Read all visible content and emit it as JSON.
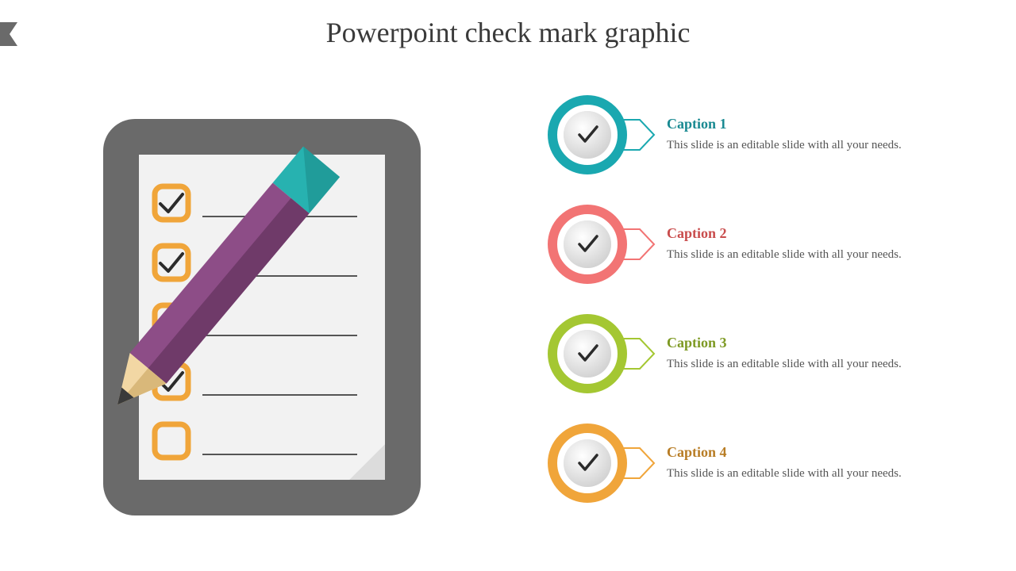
{
  "title": "Powerpoint check mark graphic",
  "title_color": "#3a3a3a",
  "background_color": "#ffffff",
  "arrow_tab_color": "#6a6a6a",
  "clipboard": {
    "body_color": "#6a6a6a",
    "paper_color": "#f2f2f2",
    "checkbox_border_color": "#f0a53a",
    "checkbox_fill_color": "#f7b74f",
    "checkmark_color": "#2b2b2b",
    "line_color": "#555555",
    "pencil_body_color": "#8d4d87",
    "pencil_body_shade": "#6f3a69",
    "pencil_eraser_color": "#27b2b0",
    "pencil_eraser_shade": "#1a8583",
    "pencil_tip_wood": "#f2d7a4",
    "pencil_tip_wood_shade": "#d9b87a",
    "pencil_tip_lead": "#3a3a3a",
    "fold_color": "#dcdcdc",
    "items": [
      {
        "checked": true
      },
      {
        "checked": true
      },
      {
        "checked": true
      },
      {
        "checked": true
      },
      {
        "checked": false
      }
    ]
  },
  "list": {
    "inner_circle_fill": "#e8e8e8",
    "inner_circle_shade": "#d0d0d0",
    "checkmark_color": "#2b2b2b",
    "desc_color": "#555555",
    "items": [
      {
        "title": "Caption 1",
        "desc": "This slide is an editable slide with all your needs.",
        "color": "#1aa8b0",
        "title_color": "#1a8a92"
      },
      {
        "title": "Caption 2",
        "desc": "This slide is an editable slide with all your needs.",
        "color": "#f27474",
        "title_color": "#c94d4d"
      },
      {
        "title": "Caption 3",
        "desc": "This slide is an editable slide with all your needs.",
        "color": "#a4c732",
        "title_color": "#7e9a24"
      },
      {
        "title": "Caption 4",
        "desc": "This slide is an editable slide with all your needs.",
        "color": "#f0a53a",
        "title_color": "#b87d26"
      }
    ]
  }
}
